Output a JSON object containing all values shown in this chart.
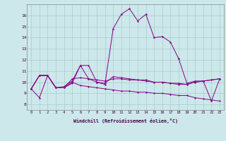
{
  "xlabel": "Windchill (Refroidissement éolien,°C)",
  "background_color": "#cce8ea",
  "grid_color": "#aacccc",
  "line_color": "#880088",
  "xlim": [
    -0.5,
    23.5
  ],
  "ylim": [
    7.5,
    17.0
  ],
  "xticks": [
    0,
    1,
    2,
    3,
    4,
    5,
    6,
    7,
    8,
    9,
    10,
    11,
    12,
    13,
    14,
    15,
    16,
    17,
    18,
    19,
    20,
    21,
    22,
    23
  ],
  "yticks": [
    8,
    9,
    10,
    11,
    12,
    13,
    14,
    15,
    16
  ],
  "line1_y": [
    9.4,
    8.6,
    10.6,
    9.5,
    9.6,
    10.1,
    11.5,
    10.3,
    10.0,
    9.8,
    14.8,
    16.1,
    16.6,
    15.5,
    16.1,
    14.0,
    14.1,
    13.6,
    12.1,
    9.9,
    10.1,
    10.1,
    8.3,
    10.3
  ],
  "line2_y": [
    9.4,
    10.6,
    10.6,
    9.5,
    9.5,
    10.3,
    10.4,
    10.3,
    10.2,
    10.1,
    10.3,
    10.3,
    10.2,
    10.2,
    10.1,
    10.0,
    10.0,
    9.9,
    9.8,
    9.8,
    10.0,
    10.1,
    10.2,
    10.3
  ],
  "line3_y": [
    9.4,
    10.6,
    10.6,
    9.5,
    9.5,
    10.0,
    9.7,
    9.6,
    9.5,
    9.4,
    9.3,
    9.2,
    9.2,
    9.1,
    9.1,
    9.0,
    9.0,
    8.9,
    8.8,
    8.8,
    8.6,
    8.5,
    8.4,
    8.3
  ],
  "line4_y": [
    9.4,
    10.6,
    10.6,
    9.5,
    9.5,
    9.9,
    11.5,
    11.5,
    10.0,
    9.9,
    10.5,
    10.4,
    10.3,
    10.2,
    10.2,
    10.0,
    10.0,
    9.9,
    9.9,
    9.8,
    10.0,
    10.1,
    10.2,
    10.3
  ],
  "figsize": [
    3.2,
    2.0
  ],
  "dpi": 100
}
